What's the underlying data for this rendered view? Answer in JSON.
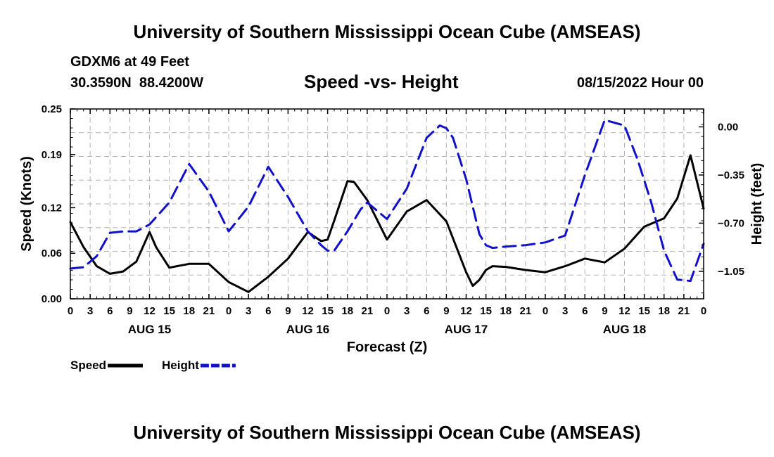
{
  "title": "University of Southern Mississippi Ocean Cube (AMSEAS)",
  "station": "GDXM6 at 49 Feet",
  "coords": "30.3590N  88.4200W",
  "date": "08/15/2022 Hour 00",
  "footer_title": "University of Southern Mississippi Ocean Cube (AMSEAS)",
  "chart_data": {
    "type": "line",
    "title": "Speed -vs- Height",
    "xlabel": "Forecast (Z)",
    "ylabel": "Speed (Knots)",
    "y2label": "Height (feet)",
    "xlim": [
      0,
      96
    ],
    "ylim": [
      0,
      0.25
    ],
    "y2lim": [
      -1.25,
      0.13
    ],
    "x_tick_labels": [
      "0",
      "3",
      "6",
      "9",
      "12",
      "15",
      "18",
      "21",
      "0",
      "3",
      "6",
      "9",
      "12",
      "15",
      "18",
      "21",
      "0",
      "3",
      "6",
      "9",
      "12",
      "15",
      "18",
      "21",
      "0",
      "3",
      "6",
      "9",
      "12",
      "15",
      "18",
      "21",
      "0"
    ],
    "day_labels": [
      {
        "x": 12,
        "label": "AUG 15"
      },
      {
        "x": 36,
        "label": "AUG 16"
      },
      {
        "x": 60,
        "label": "AUG 17"
      },
      {
        "x": 84,
        "label": "AUG 18"
      }
    ],
    "y_ticks": [
      0.0,
      0.06,
      0.12,
      0.19,
      0.25
    ],
    "y_tick_labels": [
      "0.00",
      "0.06",
      "0.12",
      "0.19",
      "0.25"
    ],
    "y2_ticks": [
      0.0,
      -0.35,
      -0.7,
      -1.05
    ],
    "y2_tick_labels": [
      "0.00",
      "−0.35",
      "−0.70",
      "−1.05"
    ],
    "series": [
      {
        "name": "Speed",
        "axis": "left",
        "color": "#000000",
        "dash": false,
        "x": [
          0,
          2,
          4,
          6,
          8,
          10,
          12,
          13,
          15,
          18,
          21,
          24,
          27,
          30,
          33,
          36,
          38,
          39,
          40,
          42,
          43,
          45,
          48,
          51,
          54,
          57,
          60,
          61,
          62,
          63,
          64,
          66,
          69,
          72,
          75,
          78,
          81,
          84,
          87,
          90,
          92,
          94,
          96
        ],
        "y": [
          0.101,
          0.068,
          0.043,
          0.033,
          0.036,
          0.049,
          0.088,
          0.068,
          0.041,
          0.046,
          0.046,
          0.022,
          0.009,
          0.029,
          0.053,
          0.088,
          0.076,
          0.078,
          0.103,
          0.155,
          0.154,
          0.13,
          0.078,
          0.115,
          0.13,
          0.102,
          0.035,
          0.017,
          0.025,
          0.038,
          0.043,
          0.042,
          0.038,
          0.035,
          0.043,
          0.053,
          0.048,
          0.066,
          0.095,
          0.106,
          0.132,
          0.189,
          0.119
        ]
      },
      {
        "name": "Height",
        "axis": "right",
        "color": "#1010cc",
        "dash": true,
        "x": [
          0,
          2,
          4,
          6,
          8,
          10,
          12,
          15,
          18,
          21,
          24,
          27,
          30,
          33,
          36,
          38,
          39,
          40,
          42,
          44,
          45,
          48,
          51,
          54,
          56,
          57,
          58,
          60,
          62,
          63,
          64,
          66,
          69,
          72,
          75,
          78,
          81,
          84,
          86,
          88,
          90,
          92,
          94,
          96
        ],
        "y": [
          -1.03,
          -1.02,
          -0.94,
          -0.77,
          -0.76,
          -0.76,
          -0.71,
          -0.55,
          -0.27,
          -0.47,
          -0.76,
          -0.58,
          -0.29,
          -0.51,
          -0.76,
          -0.86,
          -0.9,
          -0.9,
          -0.76,
          -0.6,
          -0.55,
          -0.67,
          -0.45,
          -0.08,
          0.01,
          -0.01,
          -0.08,
          -0.38,
          -0.78,
          -0.86,
          -0.88,
          -0.87,
          -0.86,
          -0.84,
          -0.79,
          -0.35,
          0.05,
          0.01,
          -0.24,
          -0.54,
          -0.9,
          -1.11,
          -1.12,
          -0.85
        ]
      }
    ],
    "legend": [
      {
        "label": "Speed",
        "color": "#000000",
        "dash": false
      },
      {
        "label": "Height",
        "color": "#1010cc",
        "dash": true
      }
    ],
    "grid": true
  }
}
